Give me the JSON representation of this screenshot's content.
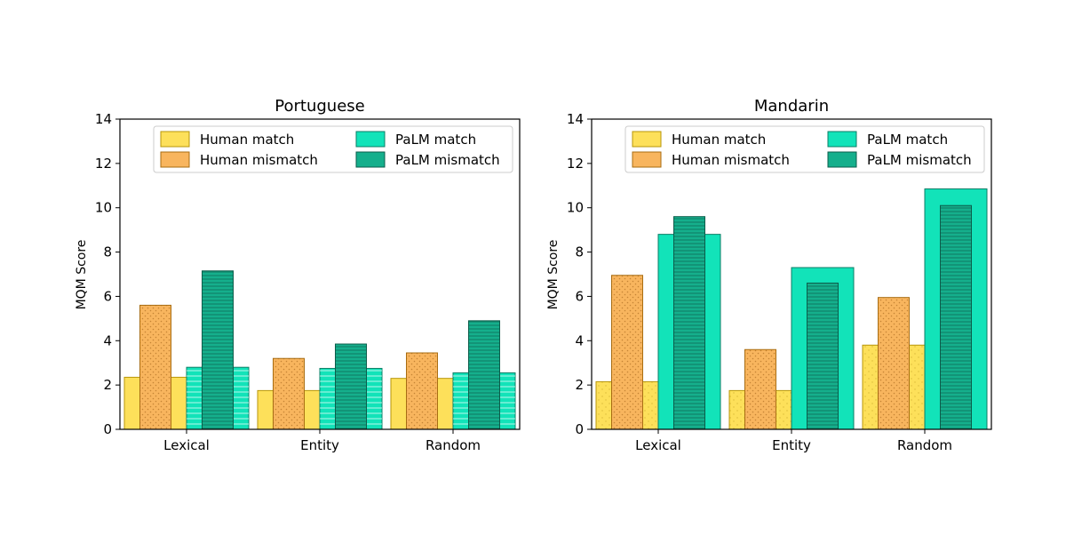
{
  "chart_data": [
    {
      "type": "bar",
      "title": "Portuguese",
      "xlabel": "",
      "ylabel": "MQM Score",
      "ylim": [
        0,
        14
      ],
      "yticks": [
        "0",
        "2",
        "4",
        "6",
        "8",
        "10",
        "12",
        "14"
      ],
      "categories": [
        "Lexical",
        "Entity",
        "Random"
      ],
      "series": [
        {
          "name": "Human match",
          "values": [
            2.35,
            1.75,
            2.3
          ],
          "color": "#fde05a",
          "edge": "#b8960a"
        },
        {
          "name": "Human mismatch",
          "values": [
            5.6,
            3.2,
            3.45
          ],
          "color": "#f8b55e",
          "edge": "#a86d12"
        },
        {
          "name": "PaLM match",
          "values": [
            2.8,
            2.75,
            2.55
          ],
          "color": "#12e3b9",
          "edge": "#0c7e66"
        },
        {
          "name": "PaLM mismatch",
          "values": [
            7.15,
            3.85,
            4.9
          ],
          "color": "#15af8c",
          "edge": "#0b5e4b"
        }
      ],
      "legend": "upper center, two columns"
    },
    {
      "type": "bar",
      "title": "Mandarin",
      "xlabel": "",
      "ylabel": "MQM Score",
      "ylim": [
        0,
        14
      ],
      "yticks": [
        "0",
        "2",
        "4",
        "6",
        "8",
        "10",
        "12",
        "14"
      ],
      "categories": [
        "Lexical",
        "Entity",
        "Random"
      ],
      "series": [
        {
          "name": "Human match",
          "values": [
            2.15,
            1.75,
            3.8
          ],
          "color": "#fde05a",
          "edge": "#b8960a"
        },
        {
          "name": "Human mismatch",
          "values": [
            6.95,
            3.6,
            5.95
          ],
          "color": "#f8b55e",
          "edge": "#a86d12"
        },
        {
          "name": "PaLM match",
          "values": [
            8.8,
            7.3,
            10.85
          ],
          "color": "#12e3b9",
          "edge": "#0c7e66"
        },
        {
          "name": "PaLM mismatch",
          "values": [
            9.6,
            6.6,
            10.1
          ],
          "color": "#15af8c",
          "edge": "#0b5e4b"
        }
      ],
      "legend": "upper center, two columns"
    }
  ]
}
